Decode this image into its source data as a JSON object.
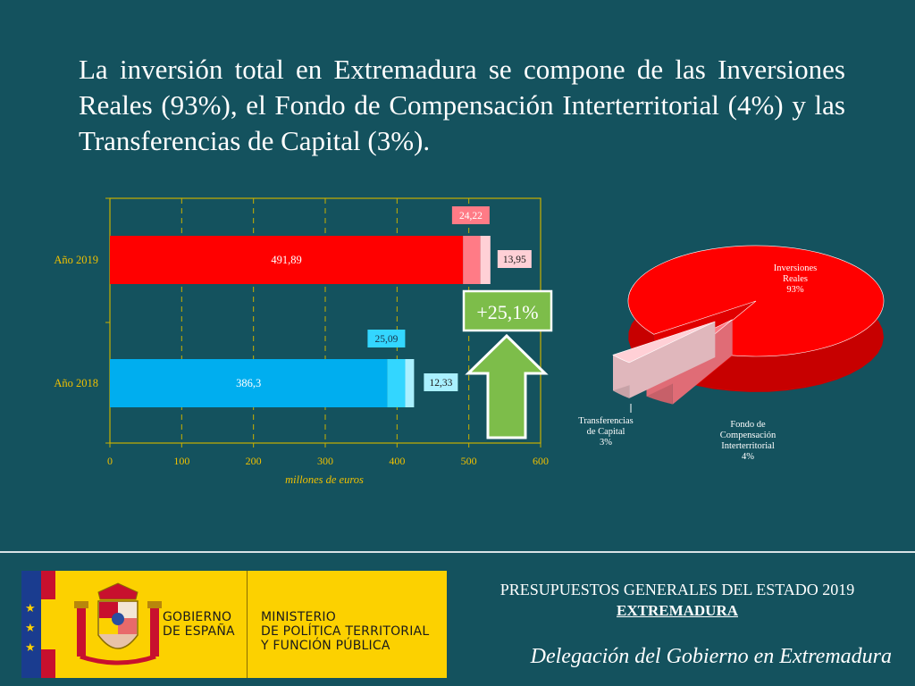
{
  "header": {
    "title": "La inversión total en Extremadura se compone de las Inversiones Reales (93%), el Fondo de Compensación Interterritorial (4%) y las Transferencias de Capital (3%)."
  },
  "chart_data": [
    {
      "type": "bar",
      "orientation": "horizontal",
      "stacked": true,
      "categories": [
        "Año 2019",
        "Año 2018"
      ],
      "series": [
        {
          "color": "#ff0000",
          "values": [
            491.89,
            386.3
          ],
          "colors": [
            "#ff0000",
            "#00aeef"
          ]
        },
        {
          "color": "#ff7b86",
          "values": [
            24.22,
            25.09
          ],
          "colors": [
            "#ff7b86",
            "#33d6ff"
          ]
        },
        {
          "color": "#ffd0d6",
          "values": [
            13.95,
            12.33
          ],
          "colors": [
            "#ffd0d6",
            "#a9f0ff"
          ]
        }
      ],
      "data_labels": {
        "Año 2019": [
          "491,89",
          "24,22",
          "13,95"
        ],
        "Año 2018": [
          "386,3",
          "25,09",
          "12,33"
        ]
      },
      "xlabel": "millones de euros",
      "xlim": [
        0,
        600
      ],
      "xticks": [
        "0",
        "100",
        "200",
        "300",
        "400",
        "500",
        "600"
      ],
      "grid": true,
      "annotation": {
        "text": "+25,1%",
        "arrow": "up",
        "arrow_color": "#7dbd4a"
      }
    },
    {
      "type": "pie",
      "style": "3d-exploded",
      "slices": [
        {
          "label": "Inversiones Reales",
          "pct_label": "93%",
          "value": 93,
          "color": "#ff0000"
        },
        {
          "label": "Fondo de Compensación Interterritorial",
          "pct_label": "4%",
          "value": 4,
          "color": "#ff7b86"
        },
        {
          "label": "Transferencias de Capital",
          "pct_label": "3%",
          "value": 3,
          "color": "#ffd0d6"
        }
      ]
    }
  ],
  "footer": {
    "logo": {
      "gobierno": "GOBIERNO\nDE ESPAÑA",
      "ministerio": "MINISTERIO\nDE POLÍTICA TERRITORIAL\nY FUNCIÓN PÚBLICA",
      "colors": {
        "yellow": "#fcd100",
        "eu_blue": "#1a3c8f",
        "red": "#c8102e"
      }
    },
    "line1": "PRESUPUESTOS GENERALES DEL ESTADO 2019",
    "line2": "EXTREMADURA",
    "line3": "Delegación del Gobierno en Extremadura"
  },
  "colors": {
    "background": "#14525e",
    "axis": "#c9b000",
    "axis_text": "#f0c000",
    "grid": "#c9b000"
  }
}
